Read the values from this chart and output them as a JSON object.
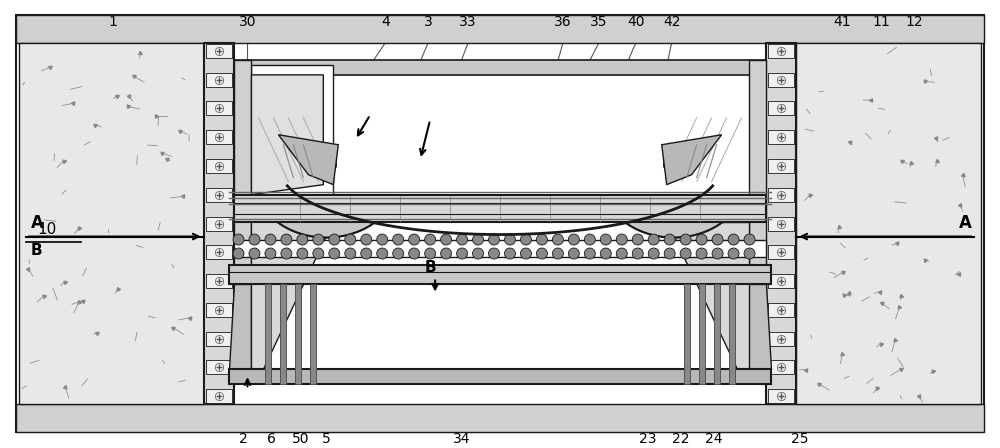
{
  "fig_width": 10.0,
  "fig_height": 4.48,
  "dpi": 100,
  "bg": "#ffffff",
  "lc": "#1a1a1a",
  "gray1": "#aaaaaa",
  "gray2": "#cccccc",
  "gray3": "#e6e6e6",
  "top_labels": [
    [
      "1",
      0.112
    ],
    [
      "30",
      0.247
    ],
    [
      "4",
      0.385
    ],
    [
      "3",
      0.428
    ],
    [
      "33",
      0.468
    ],
    [
      "36",
      0.563
    ],
    [
      "35",
      0.599
    ],
    [
      "40",
      0.636
    ],
    [
      "42",
      0.672
    ],
    [
      "41",
      0.843
    ],
    [
      "11",
      0.882
    ],
    [
      "12",
      0.915
    ]
  ],
  "bot_labels": [
    [
      "2",
      0.243
    ],
    [
      "6",
      0.271
    ],
    [
      "50",
      0.3
    ],
    [
      "5",
      0.326
    ],
    [
      "34",
      0.462
    ],
    [
      "23",
      0.648
    ],
    [
      "22",
      0.681
    ],
    [
      "24",
      0.714
    ],
    [
      "25",
      0.8
    ]
  ]
}
